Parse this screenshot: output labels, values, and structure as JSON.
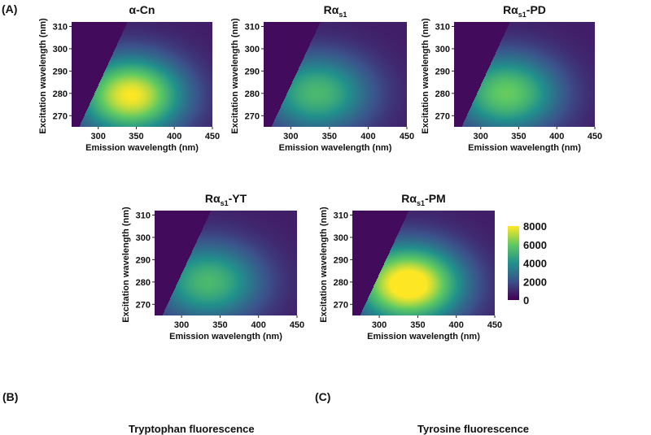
{
  "panel_labels": {
    "A": "(A)",
    "B": "(B)",
    "C": "(C)"
  },
  "section_titles": {
    "B": "Tryptophan fluorescence",
    "C": "Tyrosine fluorescence"
  },
  "colors": {
    "colormap": "viridis",
    "scale_stops": [
      "#440154",
      "#3b528b",
      "#21918c",
      "#5ec962",
      "#fde725"
    ]
  },
  "chart_data": [
    {
      "type": "heatmap",
      "title_main": "α-Cn",
      "title_sub": "",
      "title_suffix": "",
      "xlabel": "Emission wavelength (nm)",
      "ylabel": "Excitation wavelength (nm)",
      "xlim": [
        265,
        450
      ],
      "ylim": [
        265,
        312
      ],
      "xticks": [
        300,
        350,
        400,
        450
      ],
      "yticks": [
        270,
        280,
        290,
        300,
        310
      ],
      "peak": {
        "emission": 343,
        "excitation": 279,
        "intensity": 7300
      }
    },
    {
      "type": "heatmap",
      "title_main": "Rα",
      "title_sub": "s1",
      "title_suffix": "",
      "xlabel": "Emission wavelength (nm)",
      "ylabel": "Excitation wavelength (nm)",
      "xlim": [
        265,
        450
      ],
      "ylim": [
        265,
        312
      ],
      "xticks": [
        300,
        350,
        400,
        450
      ],
      "yticks": [
        270,
        280,
        290,
        300,
        310
      ],
      "peak": {
        "emission": 334,
        "excitation": 280,
        "intensity": 4700
      }
    },
    {
      "type": "heatmap",
      "title_main": "Rα",
      "title_sub": "s1",
      "title_suffix": "-PD",
      "xlabel": "Emission wavelength (nm)",
      "ylabel": "Excitation wavelength (nm)",
      "xlim": [
        265,
        450
      ],
      "ylim": [
        265,
        312
      ],
      "xticks": [
        300,
        350,
        400,
        450
      ],
      "yticks": [
        270,
        280,
        290,
        300,
        310
      ],
      "peak": {
        "emission": 334,
        "excitation": 280,
        "intensity": 5400
      }
    },
    {
      "type": "heatmap",
      "title_main": "Rα",
      "title_sub": "s1",
      "title_suffix": "-YT",
      "xlabel": "Emission wavelength (nm)",
      "ylabel": "Excitation wavelength (nm)",
      "xlim": [
        265,
        450
      ],
      "ylim": [
        265,
        312
      ],
      "xticks": [
        300,
        350,
        400,
        450
      ],
      "yticks": [
        270,
        280,
        290,
        300,
        310
      ],
      "peak": {
        "emission": 335,
        "excitation": 280,
        "intensity": 4700
      }
    },
    {
      "type": "heatmap",
      "title_main": "Rα",
      "title_sub": "s1",
      "title_suffix": "-PM",
      "xlabel": "Emission wavelength (nm)",
      "ylabel": "Excitation wavelength (nm)",
      "xlim": [
        265,
        450
      ],
      "ylim": [
        265,
        312
      ],
      "xticks": [
        300,
        350,
        400,
        450
      ],
      "yticks": [
        270,
        280,
        290,
        300,
        310
      ],
      "peak": {
        "emission": 338,
        "excitation": 279,
        "intensity": 8200
      }
    }
  ],
  "colorbar": {
    "min": 0,
    "max": 8000,
    "ticks": [
      0,
      2000,
      4000,
      6000,
      8000
    ]
  }
}
